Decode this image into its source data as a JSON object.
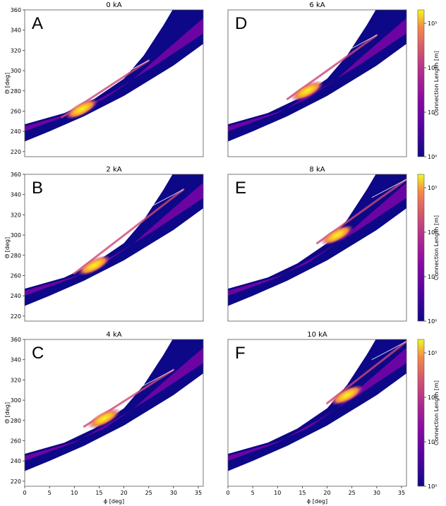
{
  "chart_data": [
    {
      "type": "heatmap",
      "panel_letter": "A",
      "title": "0 kA",
      "xlim": [
        0,
        36
      ],
      "ylim": [
        215,
        360
      ],
      "yticks": [
        "220",
        "240",
        "260",
        "280",
        "300",
        "320",
        "340",
        "360"
      ],
      "ylabel": "Θ [deg]",
      "xlabel": "",
      "hotspot": {
        "phi": 11.5,
        "theta": 262
      },
      "streak_end": {
        "phi": 25,
        "theta": 310
      }
    },
    {
      "type": "heatmap",
      "panel_letter": "D",
      "title": "6 kA",
      "xlim": [
        0,
        36
      ],
      "ylim": [
        215,
        360
      ],
      "hotspot": {
        "phi": 16,
        "theta": 280
      },
      "streak_end": {
        "phi": 30,
        "theta": 335
      }
    },
    {
      "type": "heatmap",
      "panel_letter": "B",
      "title": "2 kA",
      "xlim": [
        0,
        36
      ],
      "ylim": [
        215,
        360
      ],
      "yticks": [
        "220",
        "240",
        "260",
        "280",
        "300",
        "320",
        "340",
        "360"
      ],
      "ylabel": "Θ [deg]",
      "xlabel": "",
      "hotspot": {
        "phi": 14,
        "theta": 270
      },
      "streak_end": {
        "phi": 32,
        "theta": 345
      }
    },
    {
      "type": "heatmap",
      "panel_letter": "E",
      "title": "8 kA",
      "xlim": [
        0,
        36
      ],
      "ylim": [
        215,
        360
      ],
      "hotspot": {
        "phi": 22,
        "theta": 300
      },
      "streak_end": {
        "phi": 36,
        "theta": 355
      }
    },
    {
      "type": "heatmap",
      "panel_letter": "C",
      "title": "4 kA",
      "xlim": [
        0,
        36
      ],
      "ylim": [
        215,
        360
      ],
      "yticks": [
        "220",
        "240",
        "260",
        "280",
        "300",
        "320",
        "340",
        "360"
      ],
      "ylabel": "Θ [deg]",
      "xticks": [
        "0",
        "5",
        "10",
        "15",
        "20",
        "25",
        "30",
        "35"
      ],
      "xlabel": "ϕ [deg]",
      "hotspot": {
        "phi": 16,
        "theta": 282
      },
      "streak_end": {
        "phi": 30,
        "theta": 330
      }
    },
    {
      "type": "heatmap",
      "panel_letter": "F",
      "title": "10 kA",
      "xlim": [
        0,
        36
      ],
      "ylim": [
        215,
        360
      ],
      "xticks": [
        "0",
        "5",
        "10",
        "15",
        "20",
        "25",
        "30",
        "35"
      ],
      "xlabel": "ϕ [deg]",
      "hotspot": {
        "phi": 24,
        "theta": 305
      },
      "streak_end": {
        "phi": 36,
        "theta": 358
      }
    }
  ],
  "colorbar": {
    "label": "Connection Length [m]",
    "ticks": [
      "10³",
      "10²",
      "10¹",
      "10⁰"
    ],
    "scale": "log",
    "range": [
      1,
      2000
    ]
  },
  "colors": {
    "dark": "#0d0887",
    "mid": "#7e03a8",
    "warm": "#cc4778",
    "hot": "#f89540",
    "peak": "#f0f921"
  }
}
